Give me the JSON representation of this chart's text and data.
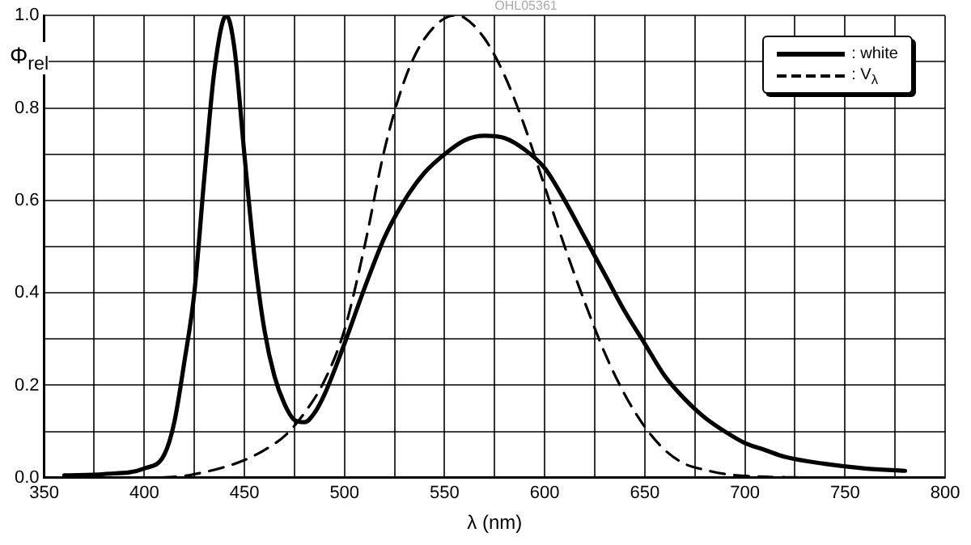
{
  "chart_data": {
    "type": "line",
    "xlabel": "λ (nm)",
    "ylabel": "Φ$_{rel}$",
    "annotations": [
      "OHL05361"
    ],
    "xlim": [
      350,
      800
    ],
    "xticks": [
      350,
      {
        "value": 375,
        "label": null
      },
      400,
      {
        "value": 425,
        "label": null
      },
      450,
      {
        "value": 475,
        "label": null
      },
      500,
      {
        "value": 525,
        "label": null
      },
      550,
      {
        "value": 575,
        "label": null
      },
      600,
      {
        "value": 625,
        "label": null
      },
      650,
      {
        "value": 675,
        "label": null
      },
      700,
      {
        "value": 725,
        "label": null
      },
      750,
      {
        "value": 775,
        "label": null
      },
      800
    ],
    "ylim": [
      0,
      1
    ],
    "yticks": [
      {
        "value": 0,
        "label": "0.0"
      },
      {
        "value": 0.1,
        "label": null
      },
      {
        "value": 0.2,
        "label": "0.2"
      },
      {
        "value": 0.3,
        "label": null
      },
      {
        "value": 0.4,
        "label": "0.4"
      },
      {
        "value": 0.5,
        "label": null
      },
      {
        "value": 0.6,
        "label": "0.6"
      },
      {
        "value": 0.7,
        "label": null
      },
      {
        "value": 0.8,
        "label": "0.8"
      },
      {
        "value": 0.9,
        "label": null
      },
      {
        "value": 1,
        "label": "1.0"
      }
    ],
    "grid": true,
    "legend": "top right",
    "marker": "none",
    "series": [
      {
        "name": ": white",
        "color": "#000000",
        "line_style": "solid",
        "x": [
          360,
          380,
          400,
          410,
          415,
          420,
          425,
          430,
          435,
          441,
          445,
          450,
          455,
          460,
          465,
          470,
          475,
          480,
          485,
          490,
          500,
          510,
          520,
          530,
          540,
          550,
          560,
          570,
          580,
          590,
          600,
          610,
          620,
          630,
          640,
          650,
          660,
          670,
          680,
          690,
          700,
          710,
          720,
          740,
          760,
          780
        ],
        "values": [
          0.005,
          0.008,
          0.02,
          0.05,
          0.12,
          0.25,
          0.4,
          0.65,
          0.88,
          1.0,
          0.93,
          0.7,
          0.48,
          0.32,
          0.22,
          0.16,
          0.125,
          0.12,
          0.14,
          0.18,
          0.29,
          0.41,
          0.52,
          0.6,
          0.66,
          0.7,
          0.73,
          0.74,
          0.735,
          0.71,
          0.67,
          0.6,
          0.52,
          0.44,
          0.36,
          0.29,
          0.22,
          0.17,
          0.13,
          0.1,
          0.075,
          0.06,
          0.045,
          0.03,
          0.02,
          0.015
        ]
      },
      {
        "name": ": V$_{λ}$",
        "color": "#000000",
        "line_style": "dashed",
        "x": [
          360,
          400,
          420,
          430,
          440,
          450,
          460,
          470,
          480,
          490,
          500,
          510,
          520,
          530,
          540,
          555,
          560,
          570,
          580,
          590,
          600,
          610,
          620,
          630,
          640,
          650,
          660,
          670,
          680,
          690,
          700,
          720,
          780
        ],
        "values": [
          0.0,
          0.0,
          0.004,
          0.012,
          0.023,
          0.038,
          0.06,
          0.09,
          0.14,
          0.21,
          0.32,
          0.5,
          0.71,
          0.86,
          0.95,
          1.0,
          0.995,
          0.95,
          0.87,
          0.76,
          0.63,
          0.5,
          0.38,
          0.27,
          0.18,
          0.11,
          0.06,
          0.03,
          0.017,
          0.008,
          0.004,
          0.001,
          0.0
        ]
      }
    ]
  }
}
